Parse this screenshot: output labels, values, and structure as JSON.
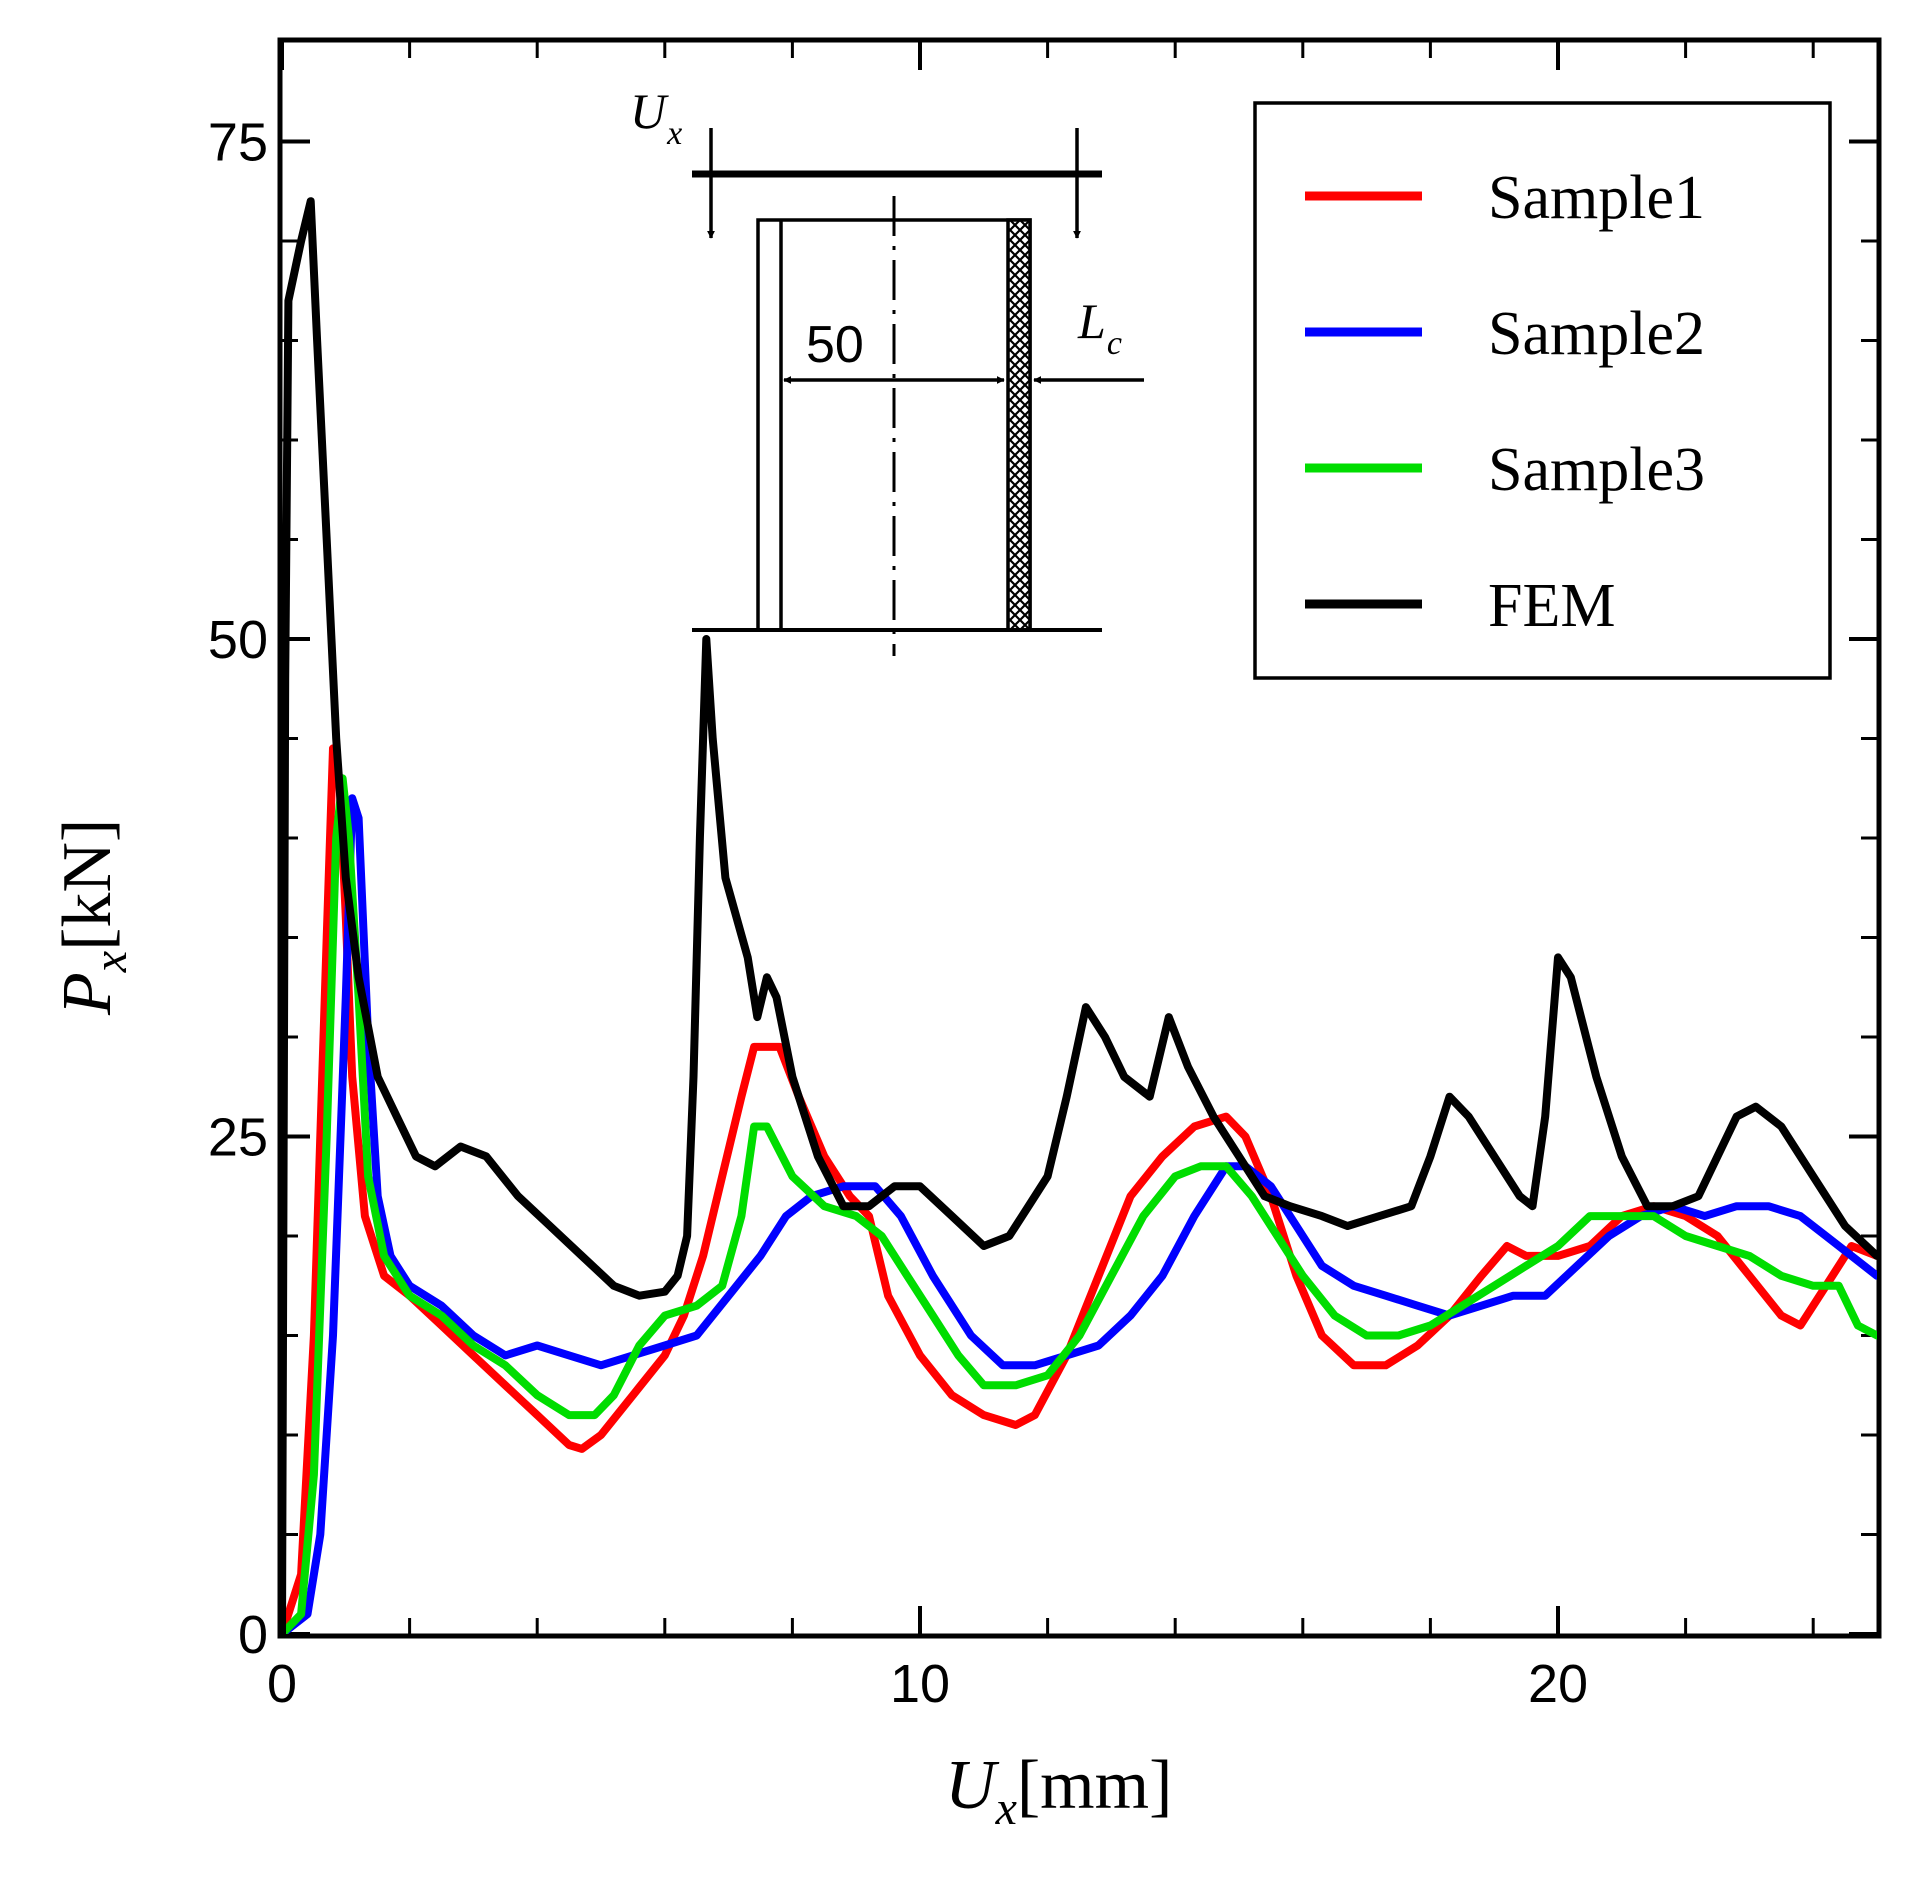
{
  "chart_data": {
    "type": "line",
    "title": "",
    "xlabel": {
      "main": "U",
      "sub": "x",
      "unit": "[mm]"
    },
    "ylabel": {
      "main": "P",
      "sub": "x",
      "unit": "[kN]"
    },
    "xlim": [
      0,
      25
    ],
    "ylim": [
      0,
      80
    ],
    "xticks": [
      0,
      10,
      20
    ],
    "xticks_minor": [
      2,
      4,
      6,
      8,
      12,
      14,
      16,
      18,
      22,
      24
    ],
    "yticks": [
      0,
      25,
      50,
      75
    ],
    "yticks_minor": [
      5,
      10,
      15,
      20,
      30,
      35,
      40,
      45,
      55,
      60,
      65,
      70
    ],
    "legend_position": "top-right",
    "series": [
      {
        "name": "Sample1",
        "color": "#ff0000",
        "points": [
          [
            0,
            0
          ],
          [
            0.3,
            3
          ],
          [
            0.5,
            15
          ],
          [
            0.7,
            35
          ],
          [
            0.8,
            44.5
          ],
          [
            0.9,
            43
          ],
          [
            1.0,
            36
          ],
          [
            1.1,
            28
          ],
          [
            1.3,
            21
          ],
          [
            1.6,
            18
          ],
          [
            2,
            17
          ],
          [
            2.5,
            15.5
          ],
          [
            3,
            14
          ],
          [
            3.5,
            12.5
          ],
          [
            4,
            11
          ],
          [
            4.5,
            9.5
          ],
          [
            4.7,
            9.3
          ],
          [
            5,
            10
          ],
          [
            5.5,
            12
          ],
          [
            6,
            14
          ],
          [
            6.3,
            16
          ],
          [
            6.6,
            19
          ],
          [
            6.9,
            23
          ],
          [
            7.2,
            27
          ],
          [
            7.4,
            29.5
          ],
          [
            7.8,
            29.5
          ],
          [
            8.1,
            27
          ],
          [
            8.5,
            24
          ],
          [
            8.9,
            22
          ],
          [
            9.2,
            21
          ],
          [
            9.5,
            17
          ],
          [
            10,
            14
          ],
          [
            10.5,
            12
          ],
          [
            11,
            11
          ],
          [
            11.5,
            10.5
          ],
          [
            11.8,
            11
          ],
          [
            12.3,
            14
          ],
          [
            12.8,
            18
          ],
          [
            13.3,
            22
          ],
          [
            13.8,
            24
          ],
          [
            14.3,
            25.5
          ],
          [
            14.8,
            26
          ],
          [
            15.1,
            25
          ],
          [
            15.5,
            22
          ],
          [
            15.9,
            18
          ],
          [
            16.3,
            15
          ],
          [
            16.8,
            13.5
          ],
          [
            17.3,
            13.5
          ],
          [
            17.8,
            14.5
          ],
          [
            18.3,
            16
          ],
          [
            18.8,
            18
          ],
          [
            19.2,
            19.5
          ],
          [
            19.5,
            19
          ],
          [
            20,
            19
          ],
          [
            20.5,
            19.5
          ],
          [
            21,
            21
          ],
          [
            21.5,
            21.5
          ],
          [
            22,
            21
          ],
          [
            22.5,
            20
          ],
          [
            23,
            18
          ],
          [
            23.5,
            16
          ],
          [
            23.8,
            15.5
          ],
          [
            24.2,
            17.5
          ],
          [
            24.6,
            19.5
          ],
          [
            25,
            19
          ]
        ]
      },
      {
        "name": "Sample2",
        "color": "#0000ff",
        "points": [
          [
            0,
            0
          ],
          [
            0.4,
            1
          ],
          [
            0.6,
            5
          ],
          [
            0.8,
            15
          ],
          [
            1.0,
            32
          ],
          [
            1.1,
            42
          ],
          [
            1.2,
            41
          ],
          [
            1.35,
            30
          ],
          [
            1.5,
            22
          ],
          [
            1.7,
            19
          ],
          [
            2,
            17.5
          ],
          [
            2.5,
            16.5
          ],
          [
            3,
            15
          ],
          [
            3.5,
            14
          ],
          [
            4,
            14.5
          ],
          [
            4.5,
            14
          ],
          [
            5,
            13.5
          ],
          [
            5.5,
            14
          ],
          [
            6,
            14.5
          ],
          [
            6.5,
            15
          ],
          [
            7,
            17
          ],
          [
            7.5,
            19
          ],
          [
            7.9,
            21
          ],
          [
            8.3,
            22
          ],
          [
            8.8,
            22.5
          ],
          [
            9.3,
            22.5
          ],
          [
            9.7,
            21
          ],
          [
            10.2,
            18
          ],
          [
            10.8,
            15
          ],
          [
            11.3,
            13.5
          ],
          [
            11.8,
            13.5
          ],
          [
            12.3,
            14
          ],
          [
            12.8,
            14.5
          ],
          [
            13.3,
            16
          ],
          [
            13.8,
            18
          ],
          [
            14.3,
            21
          ],
          [
            14.8,
            23.5
          ],
          [
            15.1,
            23.5
          ],
          [
            15.5,
            22.5
          ],
          [
            15.9,
            20.5
          ],
          [
            16.3,
            18.5
          ],
          [
            16.8,
            17.5
          ],
          [
            17.3,
            17
          ],
          [
            17.8,
            16.5
          ],
          [
            18.3,
            16
          ],
          [
            18.8,
            16.5
          ],
          [
            19.3,
            17
          ],
          [
            19.8,
            17
          ],
          [
            20.3,
            18.5
          ],
          [
            20.8,
            20
          ],
          [
            21.3,
            21
          ],
          [
            21.8,
            21.5
          ],
          [
            22.3,
            21
          ],
          [
            22.8,
            21.5
          ],
          [
            23.3,
            21.5
          ],
          [
            23.8,
            21
          ],
          [
            24.2,
            20
          ],
          [
            24.6,
            19
          ],
          [
            25,
            18
          ]
        ]
      },
      {
        "name": "Sample3",
        "color": "#00dd00",
        "points": [
          [
            0,
            0
          ],
          [
            0.3,
            1
          ],
          [
            0.5,
            8
          ],
          [
            0.7,
            25
          ],
          [
            0.85,
            40
          ],
          [
            0.95,
            43
          ],
          [
            1.05,
            40
          ],
          [
            1.2,
            32
          ],
          [
            1.35,
            23
          ],
          [
            1.6,
            19
          ],
          [
            2,
            17
          ],
          [
            2.5,
            16
          ],
          [
            3,
            14.5
          ],
          [
            3.5,
            13.5
          ],
          [
            4,
            12
          ],
          [
            4.5,
            11
          ],
          [
            4.9,
            11
          ],
          [
            5.2,
            12
          ],
          [
            5.6,
            14.5
          ],
          [
            6,
            16
          ],
          [
            6.5,
            16.5
          ],
          [
            6.9,
            17.5
          ],
          [
            7.2,
            21
          ],
          [
            7.4,
            25.5
          ],
          [
            7.6,
            25.5
          ],
          [
            8,
            23
          ],
          [
            8.5,
            21.5
          ],
          [
            9,
            21
          ],
          [
            9.4,
            20
          ],
          [
            9.8,
            18
          ],
          [
            10.2,
            16
          ],
          [
            10.6,
            14
          ],
          [
            11,
            12.5
          ],
          [
            11.5,
            12.5
          ],
          [
            12,
            13
          ],
          [
            12.5,
            15
          ],
          [
            13,
            18
          ],
          [
            13.5,
            21
          ],
          [
            14,
            23
          ],
          [
            14.4,
            23.5
          ],
          [
            14.8,
            23.5
          ],
          [
            15.2,
            22
          ],
          [
            15.6,
            20
          ],
          [
            16,
            18
          ],
          [
            16.5,
            16
          ],
          [
            17,
            15
          ],
          [
            17.5,
            15
          ],
          [
            18,
            15.5
          ],
          [
            18.5,
            16.5
          ],
          [
            19,
            17.5
          ],
          [
            19.5,
            18.5
          ],
          [
            20,
            19.5
          ],
          [
            20.5,
            21
          ],
          [
            21,
            21
          ],
          [
            21.5,
            21
          ],
          [
            22,
            20
          ],
          [
            22.5,
            19.5
          ],
          [
            23,
            19
          ],
          [
            23.5,
            18
          ],
          [
            24,
            17.5
          ],
          [
            24.4,
            17.5
          ],
          [
            24.7,
            15.5
          ],
          [
            25,
            15
          ]
        ]
      },
      {
        "name": "FEM",
        "color": "#000000",
        "points": [
          [
            0,
            0
          ],
          [
            0.05,
            48
          ],
          [
            0.1,
            67
          ],
          [
            0.3,
            70
          ],
          [
            0.45,
            72
          ],
          [
            0.55,
            65
          ],
          [
            0.7,
            55
          ],
          [
            0.85,
            45
          ],
          [
            1,
            38
          ],
          [
            1.2,
            33
          ],
          [
            1.5,
            28
          ],
          [
            1.8,
            26
          ],
          [
            2.1,
            24
          ],
          [
            2.4,
            23.5
          ],
          [
            2.8,
            24.5
          ],
          [
            3.2,
            24
          ],
          [
            3.7,
            22
          ],
          [
            4.2,
            20.5
          ],
          [
            4.7,
            19
          ],
          [
            5.2,
            17.5
          ],
          [
            5.6,
            17
          ],
          [
            6.0,
            17.2
          ],
          [
            6.2,
            18
          ],
          [
            6.35,
            20
          ],
          [
            6.45,
            28
          ],
          [
            6.55,
            40
          ],
          [
            6.65,
            50
          ],
          [
            6.75,
            45
          ],
          [
            6.95,
            38
          ],
          [
            7.3,
            34
          ],
          [
            7.45,
            31
          ],
          [
            7.6,
            33
          ],
          [
            7.75,
            32
          ],
          [
            8.0,
            28
          ],
          [
            8.4,
            24
          ],
          [
            8.8,
            21.5
          ],
          [
            9.2,
            21.5
          ],
          [
            9.6,
            22.5
          ],
          [
            10,
            22.5
          ],
          [
            10.5,
            21
          ],
          [
            11,
            19.5
          ],
          [
            11.4,
            20
          ],
          [
            11.7,
            21.5
          ],
          [
            12,
            23
          ],
          [
            12.3,
            27
          ],
          [
            12.6,
            31.5
          ],
          [
            12.9,
            30
          ],
          [
            13.2,
            28
          ],
          [
            13.6,
            27
          ],
          [
            13.9,
            31
          ],
          [
            14.2,
            28.5
          ],
          [
            14.6,
            26
          ],
          [
            15,
            24
          ],
          [
            15.4,
            22
          ],
          [
            15.8,
            21.5
          ],
          [
            16.3,
            21
          ],
          [
            16.7,
            20.5
          ],
          [
            17.2,
            21
          ],
          [
            17.7,
            21.5
          ],
          [
            18.0,
            24
          ],
          [
            18.3,
            27
          ],
          [
            18.6,
            26
          ],
          [
            19,
            24
          ],
          [
            19.4,
            22
          ],
          [
            19.6,
            21.5
          ],
          [
            19.8,
            26
          ],
          [
            20.0,
            34
          ],
          [
            20.2,
            33
          ],
          [
            20.6,
            28
          ],
          [
            21,
            24
          ],
          [
            21.4,
            21.5
          ],
          [
            21.8,
            21.5
          ],
          [
            22.2,
            22
          ],
          [
            22.5,
            24
          ],
          [
            22.8,
            26
          ],
          [
            23.1,
            26.5
          ],
          [
            23.5,
            25.5
          ],
          [
            24,
            23
          ],
          [
            24.5,
            20.5
          ],
          [
            25,
            19
          ]
        ]
      }
    ],
    "inset": {
      "load_label": {
        "main": "U",
        "sub": "x"
      },
      "dimension": "50",
      "length_label": {
        "main": "L",
        "sub": "c"
      }
    }
  }
}
